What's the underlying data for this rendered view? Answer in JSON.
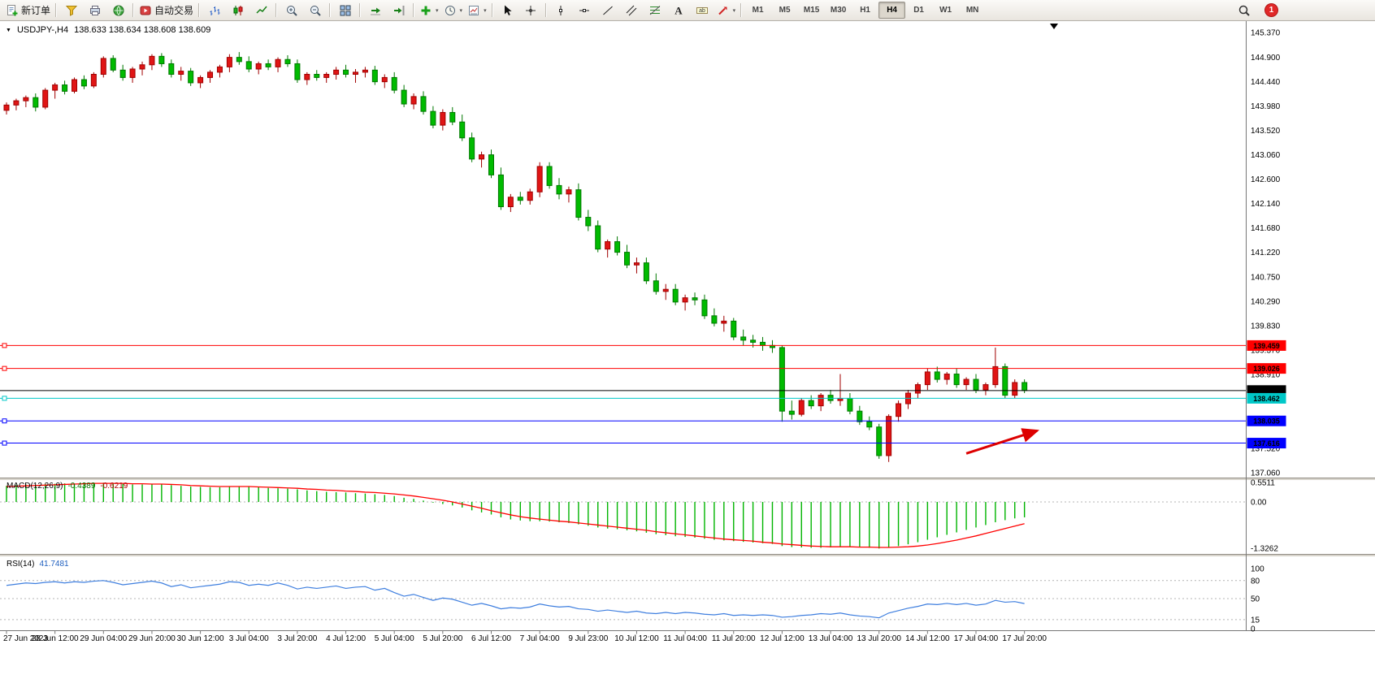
{
  "toolbar": {
    "groups": [
      [
        {
          "name": "new-order-button",
          "icon": "new-order-icon",
          "label": "新订单"
        }
      ],
      [
        {
          "name": "market-watch-button",
          "icon": "market-watch-icon"
        },
        {
          "name": "data-window-button",
          "icon": "data-window-icon"
        },
        {
          "name": "navigator-button",
          "icon": "navigator-icon"
        }
      ],
      [
        {
          "name": "autotrading-button",
          "icon": "autotrading-icon",
          "label": "自动交易"
        }
      ],
      [
        {
          "name": "bar-chart-button",
          "icon": "bar-chart-icon"
        },
        {
          "name": "candlestick-button",
          "icon": "candlestick-icon"
        },
        {
          "name": "line-chart-button",
          "icon": "line-chart-icon"
        }
      ],
      [
        {
          "name": "zoom-in-button",
          "icon": "zoom-in-icon"
        },
        {
          "name": "zoom-out-button",
          "icon": "zoom-out-icon"
        }
      ],
      [
        {
          "name": "tile-windows-button",
          "icon": "tile-windows-icon"
        }
      ],
      [
        {
          "name": "auto-scroll-button",
          "icon": "auto-scroll-icon"
        },
        {
          "name": "chart-shift-button",
          "icon": "chart-shift-icon"
        }
      ],
      [
        {
          "name": "indicators-button",
          "icon": "indicators-icon",
          "dropdown": true
        },
        {
          "name": "periods-button",
          "icon": "clock-icon",
          "dropdown": true
        },
        {
          "name": "templates-button",
          "icon": "template-icon",
          "dropdown": true
        }
      ],
      [
        {
          "name": "cursor-button",
          "icon": "cursor-icon"
        },
        {
          "name": "crosshair-button",
          "icon": "crosshair-icon"
        }
      ],
      [
        {
          "name": "vertical-line-button",
          "icon": "vertical-line-icon"
        },
        {
          "name": "horizontal-line-button",
          "icon": "horizontal-line-icon"
        },
        {
          "name": "trendline-button",
          "icon": "trendline-icon"
        },
        {
          "name": "channel-button",
          "icon": "channel-icon"
        },
        {
          "name": "fibonacci-button",
          "icon": "fibonacci-icon"
        },
        {
          "name": "text-button",
          "icon": "text-icon"
        },
        {
          "name": "text-label-button",
          "icon": "text-label-icon"
        },
        {
          "name": "shapes-button",
          "icon": "shapes-icon",
          "dropdown": true
        }
      ]
    ],
    "timeframes": [
      "M1",
      "M5",
      "M15",
      "M30",
      "H1",
      "H4",
      "D1",
      "W1",
      "MN"
    ],
    "active_timeframe": "H4",
    "notification_count": "1"
  },
  "chart": {
    "symbol": "USDJPY-,H4",
    "ohlc_display": "138.633 138.634 138.608 138.609"
  },
  "chart_data": {
    "type": "candlestick",
    "symbol": "USDJPY-,H4",
    "timeframe": "H4",
    "ylim": [
      137.06,
      145.37
    ],
    "y_axis": {
      "labels": [
        "145.370",
        "144.900",
        "144.440",
        "143.980",
        "143.520",
        "143.060",
        "142.600",
        "142.140",
        "141.680",
        "141.220",
        "140.750",
        "140.290",
        "139.830",
        "139.370",
        "138.910",
        "138.450",
        "137.990",
        "137.520",
        "137.060"
      ]
    },
    "x_labels": [
      "27 Jun 2023",
      "28 Jun 12:00",
      "29 Jun 04:00",
      "29 Jun 20:00",
      "30 Jun 12:00",
      "3 Jul 04:00",
      "3 Jul 20:00",
      "4 Jul 12:00",
      "5 Jul 04:00",
      "5 Jul 20:00",
      "6 Jul 12:00",
      "7 Jul 04:00",
      "9 Jul 23:00",
      "10 Jul 12:00",
      "11 Jul 04:00",
      "11 Jul 20:00",
      "12 Jul 12:00",
      "13 Jul 04:00",
      "13 Jul 20:00",
      "14 Jul 12:00",
      "17 Jul 04:00",
      "17 Jul 20:00"
    ],
    "label_every": 5,
    "colors": {
      "up": "#e01515",
      "down": "#00bb00",
      "up_stroke": "#a00000",
      "down_stroke": "#007800",
      "macd_hist": "#00b400",
      "macd_signal": "#ff0000",
      "rsi": "#3f7fdf"
    },
    "candles": [
      [
        143.9,
        144.05,
        143.82,
        144.0
      ],
      [
        144.0,
        144.12,
        143.9,
        144.08
      ],
      [
        144.08,
        144.18,
        143.96,
        144.14
      ],
      [
        144.14,
        144.22,
        143.88,
        143.96
      ],
      [
        143.96,
        144.32,
        143.92,
        144.28
      ],
      [
        144.28,
        144.42,
        144.12,
        144.38
      ],
      [
        144.38,
        144.46,
        144.2,
        144.26
      ],
      [
        144.26,
        144.52,
        144.22,
        144.48
      ],
      [
        144.48,
        144.56,
        144.3,
        144.36
      ],
      [
        144.36,
        144.62,
        144.32,
        144.58
      ],
      [
        144.58,
        144.92,
        144.52,
        144.88
      ],
      [
        144.88,
        144.94,
        144.62,
        144.66
      ],
      [
        144.66,
        144.76,
        144.46,
        144.52
      ],
      [
        144.52,
        144.72,
        144.42,
        144.68
      ],
      [
        144.68,
        144.82,
        144.56,
        144.76
      ],
      [
        144.76,
        144.96,
        144.66,
        144.92
      ],
      [
        144.92,
        144.98,
        144.72,
        144.78
      ],
      [
        144.78,
        144.86,
        144.52,
        144.58
      ],
      [
        144.58,
        144.72,
        144.46,
        144.64
      ],
      [
        144.64,
        144.7,
        144.36,
        144.42
      ],
      [
        144.42,
        144.56,
        144.32,
        144.52
      ],
      [
        144.52,
        144.66,
        144.42,
        144.62
      ],
      [
        144.62,
        144.76,
        144.52,
        144.72
      ],
      [
        144.72,
        144.96,
        144.62,
        144.9
      ],
      [
        144.9,
        145.0,
        144.76,
        144.82
      ],
      [
        144.82,
        144.92,
        144.62,
        144.68
      ],
      [
        144.68,
        144.82,
        144.58,
        144.78
      ],
      [
        144.78,
        144.86,
        144.66,
        144.72
      ],
      [
        144.72,
        144.9,
        144.62,
        144.86
      ],
      [
        144.86,
        144.94,
        144.72,
        144.78
      ],
      [
        144.78,
        144.86,
        144.42,
        144.48
      ],
      [
        144.48,
        144.62,
        144.38,
        144.58
      ],
      [
        144.58,
        144.66,
        144.46,
        144.52
      ],
      [
        144.52,
        144.62,
        144.42,
        144.58
      ],
      [
        144.58,
        144.72,
        144.48,
        144.66
      ],
      [
        144.66,
        144.76,
        144.52,
        144.58
      ],
      [
        144.58,
        144.68,
        144.42,
        144.62
      ],
      [
        144.62,
        144.72,
        144.52,
        144.66
      ],
      [
        144.66,
        144.74,
        144.38,
        144.44
      ],
      [
        144.44,
        144.58,
        144.32,
        144.52
      ],
      [
        144.52,
        144.62,
        144.22,
        144.28
      ],
      [
        144.28,
        144.38,
        143.96,
        144.02
      ],
      [
        144.02,
        144.22,
        143.92,
        144.16
      ],
      [
        144.16,
        144.26,
        143.82,
        143.88
      ],
      [
        143.88,
        143.98,
        143.56,
        143.62
      ],
      [
        143.62,
        143.92,
        143.52,
        143.86
      ],
      [
        143.86,
        143.96,
        143.62,
        143.68
      ],
      [
        143.68,
        143.82,
        143.32,
        143.38
      ],
      [
        143.38,
        143.48,
        142.92,
        142.98
      ],
      [
        142.98,
        143.12,
        142.82,
        143.06
      ],
      [
        143.06,
        143.16,
        142.62,
        142.68
      ],
      [
        142.68,
        142.82,
        142.02,
        142.08
      ],
      [
        142.08,
        142.32,
        141.98,
        142.26
      ],
      [
        142.26,
        142.36,
        142.12,
        142.2
      ],
      [
        142.2,
        142.42,
        142.12,
        142.36
      ],
      [
        142.36,
        142.92,
        142.26,
        142.84
      ],
      [
        142.84,
        142.92,
        142.42,
        142.48
      ],
      [
        142.48,
        142.62,
        142.22,
        142.32
      ],
      [
        142.32,
        142.46,
        142.16,
        142.4
      ],
      [
        142.4,
        142.52,
        141.82,
        141.88
      ],
      [
        141.88,
        142.02,
        141.62,
        141.72
      ],
      [
        141.72,
        141.82,
        141.22,
        141.28
      ],
      [
        141.28,
        141.46,
        141.12,
        141.42
      ],
      [
        141.42,
        141.52,
        141.16,
        141.22
      ],
      [
        141.22,
        141.36,
        140.92,
        140.98
      ],
      [
        140.98,
        141.12,
        140.82,
        141.02
      ],
      [
        141.02,
        141.12,
        140.62,
        140.68
      ],
      [
        140.68,
        140.82,
        140.42,
        140.48
      ],
      [
        140.48,
        140.62,
        140.32,
        140.52
      ],
      [
        140.52,
        140.62,
        140.22,
        140.28
      ],
      [
        140.28,
        140.42,
        140.12,
        140.36
      ],
      [
        140.36,
        140.46,
        140.22,
        140.32
      ],
      [
        140.32,
        140.42,
        139.96,
        140.02
      ],
      [
        140.02,
        140.16,
        139.82,
        139.88
      ],
      [
        139.88,
        140.02,
        139.72,
        139.92
      ],
      [
        139.92,
        139.98,
        139.56,
        139.62
      ],
      [
        139.62,
        139.76,
        139.46,
        139.56
      ],
      [
        139.56,
        139.66,
        139.42,
        139.52
      ],
      [
        139.52,
        139.62,
        139.36,
        139.46
      ],
      [
        139.46,
        139.56,
        139.32,
        139.42
      ],
      [
        139.42,
        139.46,
        138.02,
        138.22
      ],
      [
        138.22,
        138.42,
        138.06,
        138.16
      ],
      [
        138.16,
        138.46,
        138.12,
        138.42
      ],
      [
        138.42,
        138.52,
        138.26,
        138.32
      ],
      [
        138.32,
        138.56,
        138.22,
        138.52
      ],
      [
        138.52,
        138.62,
        138.36,
        138.42
      ],
      [
        138.42,
        138.92,
        138.32,
        138.46
      ],
      [
        138.46,
        138.56,
        138.16,
        138.22
      ],
      [
        138.22,
        138.32,
        137.96,
        138.02
      ],
      [
        138.02,
        138.12,
        137.86,
        137.92
      ],
      [
        137.92,
        137.98,
        137.32,
        137.38
      ],
      [
        137.38,
        138.16,
        137.26,
        138.12
      ],
      [
        138.12,
        138.42,
        138.02,
        138.36
      ],
      [
        138.36,
        138.62,
        138.26,
        138.56
      ],
      [
        138.56,
        138.76,
        138.46,
        138.72
      ],
      [
        138.72,
        139.02,
        138.62,
        138.96
      ],
      [
        138.96,
        139.06,
        138.76,
        138.82
      ],
      [
        138.82,
        138.96,
        138.72,
        138.92
      ],
      [
        138.92,
        139.02,
        138.66,
        138.72
      ],
      [
        138.72,
        138.86,
        138.62,
        138.82
      ],
      [
        138.82,
        138.92,
        138.56,
        138.62
      ],
      [
        138.62,
        138.76,
        138.52,
        138.72
      ],
      [
        138.72,
        139.42,
        138.66,
        139.06
      ],
      [
        139.06,
        139.12,
        138.46,
        138.52
      ],
      [
        138.52,
        138.82,
        138.46,
        138.76
      ],
      [
        138.76,
        138.82,
        138.56,
        138.61
      ]
    ],
    "hlines": [
      {
        "price": 139.459,
        "label": "139.459",
        "color": "#ff0000"
      },
      {
        "price": 139.026,
        "label": "139.026",
        "color": "#ff0000"
      },
      {
        "price": 138.609,
        "label": "138.609",
        "color": "#000000",
        "current": true
      },
      {
        "price": 138.462,
        "label": "138.462",
        "color": "#00c8c8",
        "text_color": "#000000"
      },
      {
        "price": 138.035,
        "label": "138.035",
        "color": "#0000ff"
      },
      {
        "price": 137.616,
        "label": "137.616",
        "color": "#0000ff"
      }
    ],
    "indicators": {
      "macd": {
        "label": "MACD(12,26,9)",
        "main_value": "-0.4389",
        "signal_value": "-0.6219",
        "axis_labels": [
          "0.5511",
          "0.00",
          "-1.3262"
        ],
        "histogram": [
          0.46,
          0.48,
          0.5,
          0.49,
          0.51,
          0.52,
          0.53,
          0.52,
          0.54,
          0.55,
          0.55,
          0.54,
          0.52,
          0.5,
          0.5,
          0.51,
          0.5,
          0.48,
          0.46,
          0.44,
          0.43,
          0.42,
          0.42,
          0.44,
          0.45,
          0.44,
          0.42,
          0.4,
          0.39,
          0.38,
          0.36,
          0.33,
          0.31,
          0.29,
          0.28,
          0.27,
          0.25,
          0.24,
          0.22,
          0.2,
          0.17,
          0.12,
          0.09,
          0.04,
          -0.02,
          -0.06,
          -0.1,
          -0.16,
          -0.24,
          -0.3,
          -0.36,
          -0.44,
          -0.5,
          -0.53,
          -0.55,
          -0.55,
          -0.56,
          -0.58,
          -0.6,
          -0.64,
          -0.68,
          -0.73,
          -0.76,
          -0.78,
          -0.81,
          -0.84,
          -0.88,
          -0.92,
          -0.95,
          -0.98,
          -1.0,
          -1.02,
          -1.05,
          -1.08,
          -1.1,
          -1.12,
          -1.14,
          -1.16,
          -1.18,
          -1.2,
          -1.26,
          -1.29,
          -1.3,
          -1.31,
          -1.31,
          -1.3,
          -1.29,
          -1.29,
          -1.3,
          -1.31,
          -1.33,
          -1.3,
          -1.26,
          -1.21,
          -1.15,
          -1.08,
          -1.01,
          -0.94,
          -0.87,
          -0.8,
          -0.73,
          -0.66,
          -0.58,
          -0.52,
          -0.47,
          -0.44
        ],
        "signal": [
          0.44,
          0.45,
          0.46,
          0.47,
          0.48,
          0.49,
          0.5,
          0.51,
          0.52,
          0.53,
          0.53,
          0.53,
          0.53,
          0.52,
          0.52,
          0.51,
          0.51,
          0.5,
          0.49,
          0.47,
          0.46,
          0.45,
          0.44,
          0.44,
          0.44,
          0.44,
          0.43,
          0.42,
          0.41,
          0.4,
          0.39,
          0.37,
          0.36,
          0.34,
          0.33,
          0.31,
          0.3,
          0.28,
          0.27,
          0.25,
          0.23,
          0.2,
          0.17,
          0.13,
          0.09,
          0.05,
          0.0,
          -0.06,
          -0.12,
          -0.18,
          -0.25,
          -0.31,
          -0.37,
          -0.42,
          -0.46,
          -0.49,
          -0.52,
          -0.55,
          -0.57,
          -0.6,
          -0.63,
          -0.66,
          -0.69,
          -0.72,
          -0.75,
          -0.78,
          -0.81,
          -0.85,
          -0.88,
          -0.91,
          -0.94,
          -0.97,
          -1.0,
          -1.03,
          -1.06,
          -1.08,
          -1.1,
          -1.12,
          -1.15,
          -1.17,
          -1.2,
          -1.22,
          -1.24,
          -1.26,
          -1.27,
          -1.28,
          -1.28,
          -1.28,
          -1.29,
          -1.29,
          -1.3,
          -1.3,
          -1.29,
          -1.28,
          -1.26,
          -1.23,
          -1.19,
          -1.14,
          -1.09,
          -1.03,
          -0.97,
          -0.9,
          -0.83,
          -0.76,
          -0.69,
          -0.62
        ]
      },
      "rsi": {
        "label": "RSI(14)",
        "value": "41.7481",
        "axis_labels": [
          "100",
          "80",
          "50",
          "15",
          "0"
        ],
        "levels": [
          80,
          50,
          15
        ],
        "series": [
          72,
          74,
          76,
          75,
          77,
          78,
          76,
          78,
          77,
          79,
          80,
          77,
          73,
          75,
          77,
          79,
          76,
          70,
          73,
          68,
          70,
          72,
          74,
          78,
          77,
          72,
          74,
          72,
          76,
          72,
          66,
          69,
          67,
          69,
          71,
          67,
          69,
          70,
          64,
          67,
          60,
          54,
          57,
          52,
          47,
          51,
          49,
          44,
          39,
          42,
          38,
          33,
          35,
          34,
          36,
          41,
          38,
          36,
          37,
          33,
          32,
          29,
          31,
          29,
          27,
          29,
          26,
          25,
          27,
          25,
          27,
          26,
          24,
          23,
          25,
          22,
          23,
          22,
          23,
          22,
          19,
          20,
          22,
          23,
          25,
          24,
          26,
          23,
          21,
          20,
          18,
          26,
          30,
          34,
          37,
          41,
          40,
          42,
          40,
          42,
          39,
          41,
          47,
          44,
          45,
          41.7
        ]
      }
    },
    "annotations": [
      {
        "type": "arrow",
        "color": "#dd0000",
        "from_index": 99,
        "from_price": 137.42,
        "to_index": 106.3,
        "to_price": 137.85
      }
    ]
  }
}
